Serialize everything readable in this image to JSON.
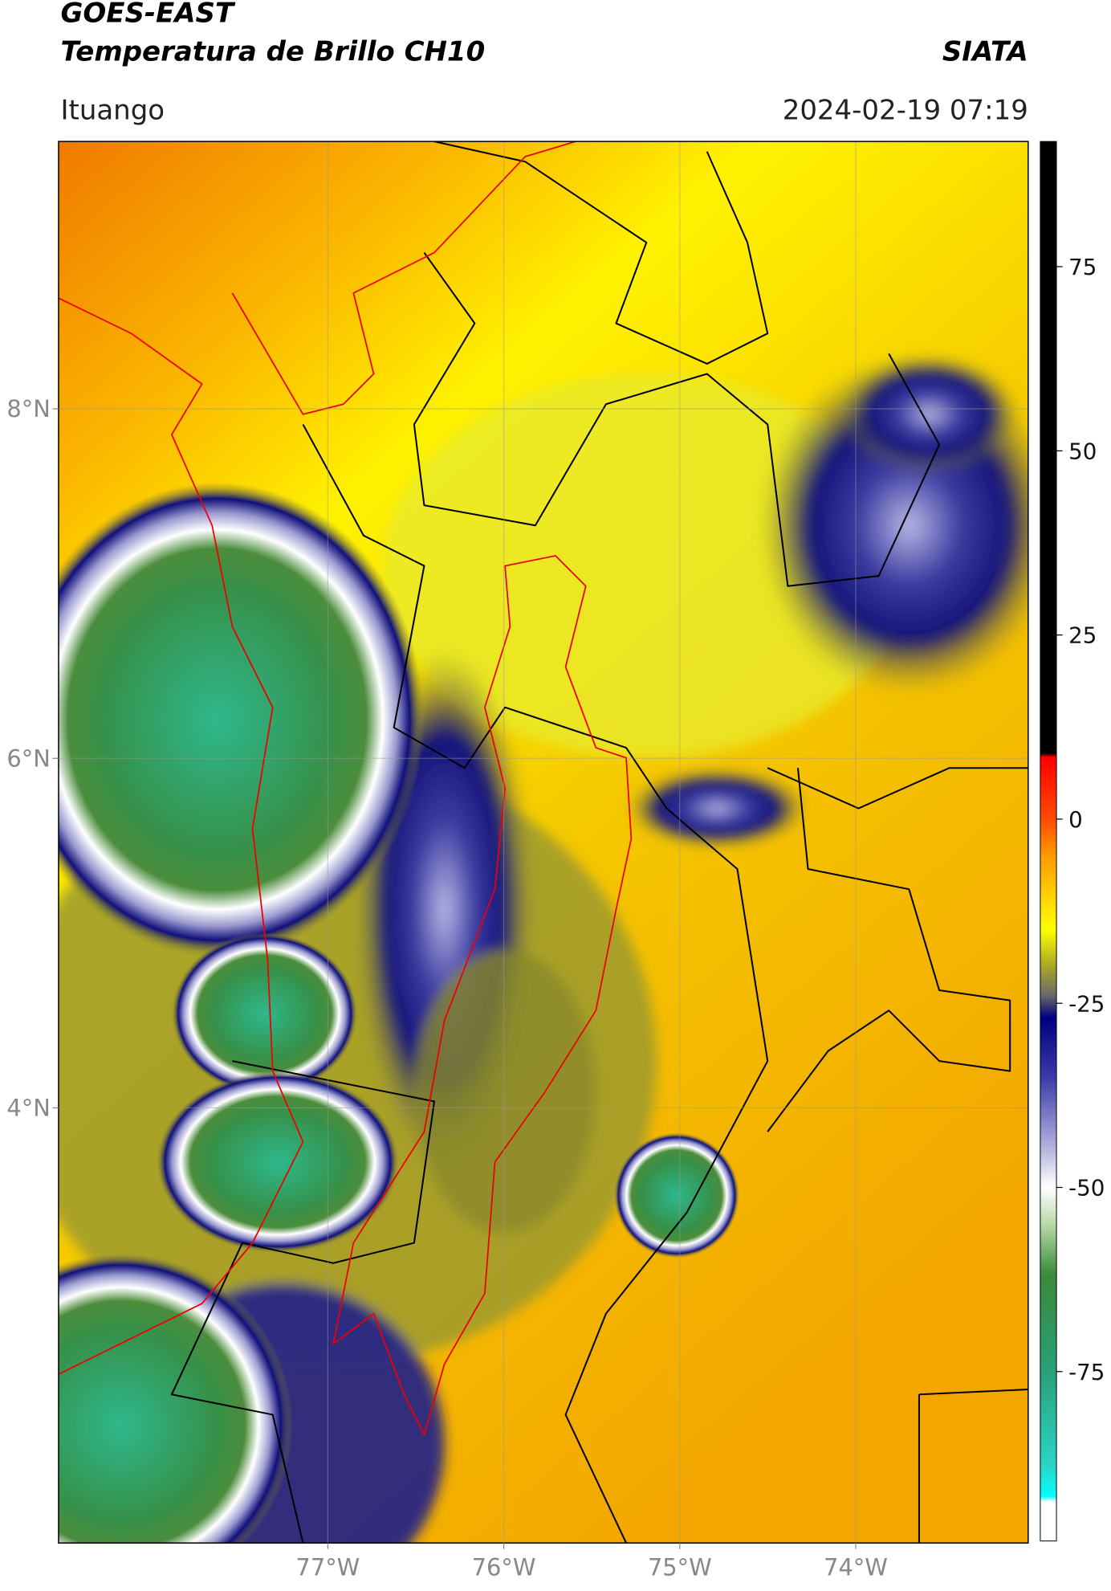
{
  "header": {
    "title": "GOES-EAST",
    "subtitle": "Temperatura de Brillo CH10",
    "organization": "SIATA",
    "location": "Ituango",
    "datetime": "2024-02-19 07:19"
  },
  "map": {
    "xlim": [
      -78.53,
      -73.02
    ],
    "ylim": [
      1.51,
      9.53
    ],
    "xticks": [
      {
        "value": -77,
        "label": "77°W"
      },
      {
        "value": -76,
        "label": "76°W"
      },
      {
        "value": -75,
        "label": "75°W"
      },
      {
        "value": -74,
        "label": "74°W"
      }
    ],
    "yticks": [
      {
        "value": 8,
        "label": "8°N"
      },
      {
        "value": 6,
        "label": "6°N"
      },
      {
        "value": 4,
        "label": "4°N"
      }
    ],
    "grid": true
  },
  "colorbar": {
    "lim": [
      -98,
      92
    ],
    "ticks": [
      75,
      50,
      25,
      0,
      -25,
      -50,
      -75
    ]
  }
}
